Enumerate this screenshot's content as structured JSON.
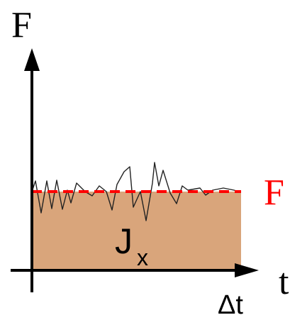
{
  "labels": {
    "y_axis": "F",
    "x_axis": "t",
    "impulse_main": "J",
    "impulse_sub": "x",
    "average_force": "F",
    "interval": "Δt"
  },
  "colors": {
    "area_fill": "#d9a57b",
    "axis": "#000000",
    "force_curve": "#222222",
    "average_line": "#ff0000",
    "average_label": "#ff0000"
  }
}
